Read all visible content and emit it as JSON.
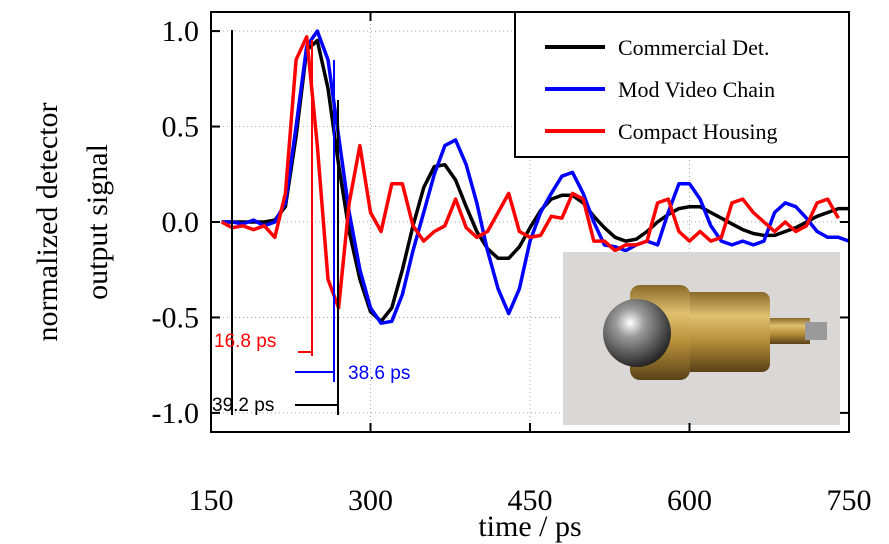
{
  "chart_data": {
    "type": "line",
    "x_label": "time / ps",
    "y_label": [
      "normalized detector",
      "output signal"
    ],
    "x": [
      160,
      170,
      180,
      190,
      200,
      210,
      220,
      230,
      240,
      250,
      260,
      270,
      280,
      290,
      300,
      310,
      320,
      330,
      340,
      350,
      360,
      370,
      380,
      390,
      400,
      410,
      420,
      430,
      440,
      450,
      460,
      470,
      480,
      490,
      500,
      510,
      520,
      530,
      540,
      550,
      560,
      570,
      580,
      590,
      600,
      610,
      620,
      630,
      640,
      650,
      660,
      670,
      680,
      690,
      700,
      710,
      720,
      730,
      740,
      750
    ],
    "series": [
      {
        "name": "Commercial Det.",
        "color": "#000000",
        "values": [
          0,
          0,
          0,
          0,
          0,
          0.01,
          0.08,
          0.45,
          0.9,
          0.95,
          0.7,
          0.3,
          -0.05,
          -0.3,
          -0.47,
          -0.52,
          -0.45,
          -0.25,
          -0.02,
          0.18,
          0.29,
          0.3,
          0.22,
          0.08,
          -0.05,
          -0.14,
          -0.19,
          -0.19,
          -0.13,
          -0.03,
          0.06,
          0.12,
          0.14,
          0.14,
          0.1,
          0.03,
          -0.03,
          -0.08,
          -0.1,
          -0.09,
          -0.05,
          0,
          0.04,
          0.07,
          0.08,
          0.08,
          0.05,
          0.02,
          -0.01,
          -0.04,
          -0.06,
          -0.07,
          -0.07,
          -0.05,
          -0.03,
          0,
          0.03,
          0.05,
          0.07,
          0.07
        ]
      },
      {
        "name": "Mod Video Chain",
        "color": "#0000ff",
        "values": [
          0,
          0,
          -0.01,
          0.01,
          -0.02,
          0,
          0.1,
          0.5,
          0.92,
          1.0,
          0.85,
          0.45,
          0.05,
          -0.25,
          -0.45,
          -0.53,
          -0.52,
          -0.38,
          -0.15,
          0.05,
          0.25,
          0.4,
          0.43,
          0.3,
          0.1,
          -0.15,
          -0.35,
          -0.48,
          -0.35,
          -0.1,
          0.05,
          0.15,
          0.24,
          0.26,
          0.15,
          0,
          -0.12,
          -0.13,
          -0.15,
          -0.12,
          -0.1,
          -0.12,
          0.05,
          0.2,
          0.2,
          0.12,
          -0.02,
          -0.1,
          -0.12,
          -0.1,
          -0.12,
          -0.1,
          0.05,
          0.1,
          0.08,
          0.02,
          -0.05,
          -0.08,
          -0.08,
          -0.1
        ]
      },
      {
        "name": "Compact Housing",
        "color": "#ff0000",
        "values": [
          0,
          -0.03,
          -0.02,
          -0.04,
          -0.02,
          -0.08,
          0.15,
          0.85,
          0.97,
          0.4,
          -0.3,
          -0.45,
          0.1,
          0.4,
          0.05,
          -0.05,
          0.2,
          0.2,
          -0.02,
          -0.1,
          -0.05,
          -0.02,
          0.12,
          -0.03,
          -0.08,
          -0.05,
          0.05,
          0.15,
          -0.05,
          -0.08,
          -0.07,
          0.03,
          0.02,
          0.15,
          0.12,
          -0.1,
          -0.1,
          -0.15,
          -0.12,
          -0.12,
          -0.1,
          0.1,
          0.12,
          -0.05,
          -0.1,
          -0.05,
          -0.1,
          -0.08,
          0.1,
          0.12,
          0.05,
          0,
          -0.05,
          0,
          -0.05,
          -0.02,
          0.1,
          0.12,
          0.02,
          null
        ]
      }
    ],
    "xlim": [
      150,
      750
    ],
    "ylim": [
      -1.1,
      1.1
    ],
    "xticks": [
      150,
      300,
      450,
      600,
      750
    ],
    "yticks": [
      {
        "value": -1,
        "label": "-1.0"
      },
      -0.5,
      {
        "value": 0,
        "label": "0.0"
      },
      0.5,
      {
        "value": 1,
        "label": "1.0"
      }
    ],
    "grid": true,
    "legend": "upper right",
    "annotations": [
      "16.8 ps",
      "38.6 ps",
      "39.2 ps"
    ]
  }
}
